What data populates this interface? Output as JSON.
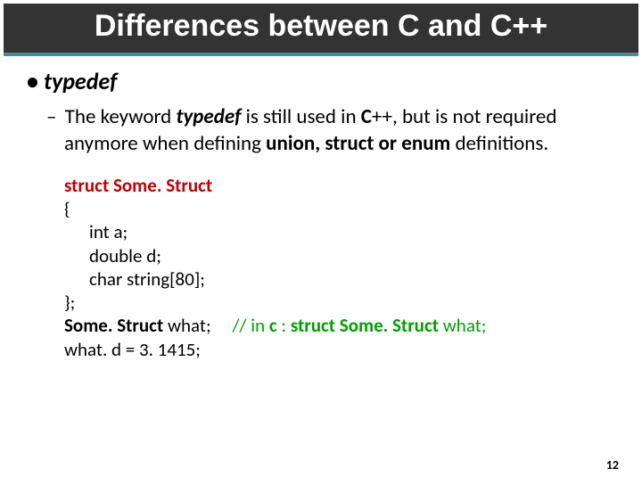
{
  "title_banner": "Differences between C and C++",
  "bullet": {
    "mark": "•",
    "text": "typedef"
  },
  "sub": {
    "dash": "–",
    "part1": "The keyword ",
    "kw_typedef": "typedef",
    "part2": " is still used in ",
    "kw_cpp": "C",
    "part2b": "++, but is not required anymore when defining ",
    "kw_union": "union, struct or enum",
    "part3": " definitions."
  },
  "code": {
    "struct_decl": "struct Some. Struct",
    "open_brace": "{",
    "line_int": "int    a;",
    "line_double": "double  d;",
    "line_char": "char   string[80];",
    "close_brace": "};",
    "some_struct": "Some. Struct",
    "what_decl": " what",
    "semicolon": ";",
    "spacer": "     ",
    "comment_prefix": "// in ",
    "comment_c": "c",
    "comment_colon": " : ",
    "comment_struct": "struct Some. Struct",
    "comment_what": " what;",
    "assign": "what. d = 3. 1415;"
  },
  "page_number": "12",
  "colors": {
    "banner_bg": "#333333",
    "banner_underline": "#4a8aa0",
    "struct_red": "#c00000",
    "comment_green": "#00a000",
    "text": "#000000"
  }
}
